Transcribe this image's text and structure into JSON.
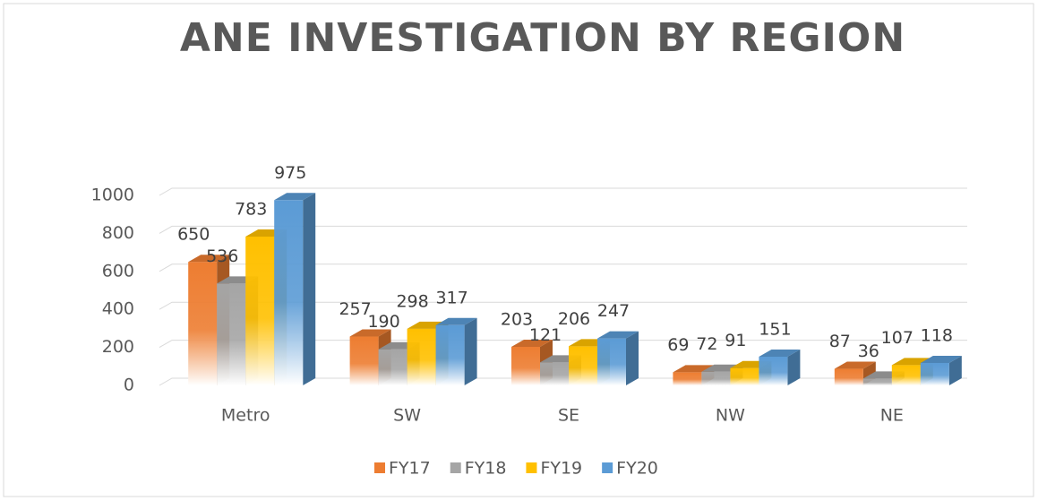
{
  "chart_data": {
    "type": "bar3d",
    "title": "ANE INVESTIGATION BY REGION",
    "categories": [
      "Metro",
      "SW",
      "SE",
      "NW",
      "NE"
    ],
    "series": [
      {
        "name": "FY17",
        "color": "#ED7D31",
        "values": [
          650,
          257,
          203,
          69,
          87
        ]
      },
      {
        "name": "FY18",
        "color": "#A5A5A5",
        "values": [
          536,
          190,
          121,
          72,
          36
        ]
      },
      {
        "name": "FY19",
        "color": "#FFC000",
        "values": [
          783,
          298,
          206,
          91,
          107
        ]
      },
      {
        "name": "FY20",
        "color": "#5B9BD5",
        "values": [
          975,
          317,
          247,
          151,
          118
        ]
      }
    ],
    "ylim": [
      0,
      1000
    ],
    "yticks": [
      0,
      200,
      400,
      600,
      800,
      1000
    ],
    "grid": true,
    "legend": "bottom"
  }
}
